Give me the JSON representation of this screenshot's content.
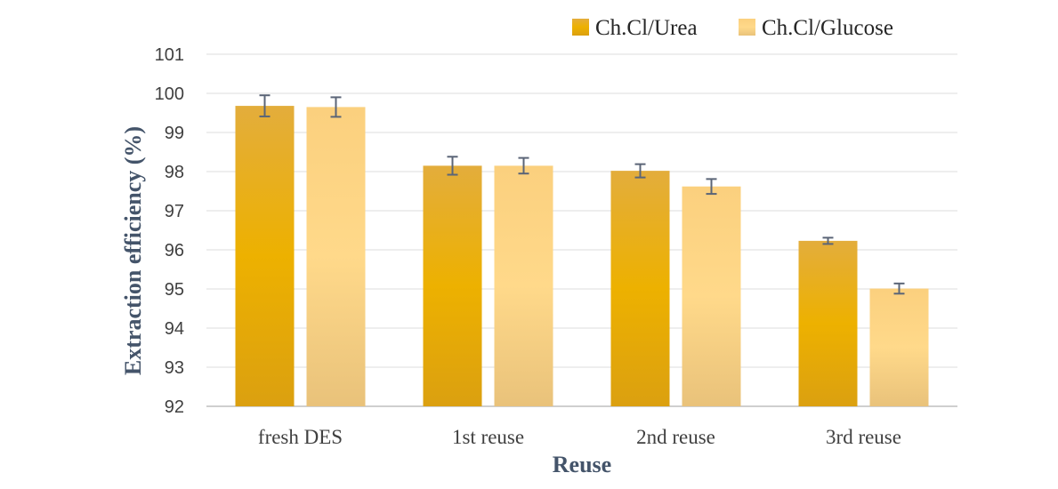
{
  "chart_data": {
    "type": "bar",
    "title": "",
    "xlabel": "Reuse",
    "ylabel": "Extraction efficiency (%)",
    "categories": [
      "fresh DES",
      "1st reuse",
      "2nd reuse",
      "3rd reuse"
    ],
    "ylim": [
      92,
      101
    ],
    "yticks": [
      "92",
      "93",
      "94",
      "95",
      "96",
      "97",
      "98",
      "99",
      "100",
      "101"
    ],
    "grid": true,
    "legend_position": "top-right",
    "series": [
      {
        "name": "Ch.Cl/Urea",
        "values": [
          99.68,
          98.15,
          98.02,
          96.23
        ],
        "errors": [
          0.27,
          0.23,
          0.17,
          0.08
        ],
        "color": "#e8a800"
      },
      {
        "name": "Ch.Cl/Glucose",
        "values": [
          99.65,
          98.15,
          97.62,
          95.01
        ],
        "errors": [
          0.25,
          0.2,
          0.19,
          0.13
        ],
        "color": "#fdd080"
      }
    ]
  }
}
